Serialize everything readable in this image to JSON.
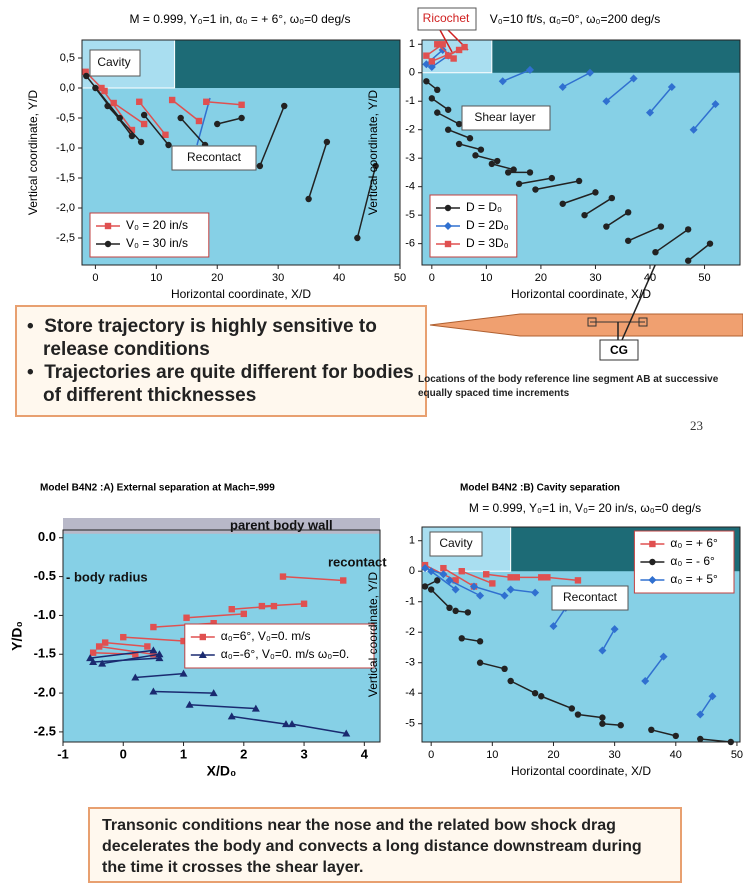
{
  "slide": {
    "bullets": [
      "Store trajectory is highly  sensitive to release conditions",
      "Trajectories are quite different for bodies of different thicknesses"
    ],
    "caption": "Locations of the body reference line segment AB at successive equally spaced time increments",
    "page_number": "23",
    "cg_label": "CG",
    "note": "Transonic conditions near the nose and the related bow shock drag decelerates the body and convects a long distance downstream during the time it crosses the shear layer."
  },
  "chart_data": [
    {
      "type": "segment",
      "title": "M = 0.999, Y₀=1 in, α₀ = + 6°, ω₀=0 deg/s",
      "x_label": "Horizontal coordinate, X/D",
      "y_label": "Vertical coordinate, Y/D",
      "xlim": [
        -2.2,
        50
      ],
      "ylim": [
        -2.95,
        0.8
      ],
      "xticks": [
        0,
        10,
        20,
        30,
        40,
        50
      ],
      "yticks": [
        {
          "value": 0.5,
          "label": "0,5"
        },
        {
          "value": 0,
          "label": "0,0"
        },
        {
          "value": -0.5,
          "label": "-0,5"
        },
        {
          "value": -1,
          "label": "-1,0"
        },
        {
          "value": -1.5,
          "label": "-1,5"
        },
        {
          "value": -2,
          "label": "-2,0"
        },
        {
          "value": -2.5,
          "label": "-2,5"
        }
      ],
      "cavity_x": 13,
      "legend": "lower left",
      "annotations": [
        "Cavity",
        "Recontact"
      ],
      "series": [
        {
          "name": "V₀ = 20 in/s",
          "color": "#e05050",
          "marker": "square",
          "segments": [
            [
              -1.6,
              0.27,
              1.5,
              -0.05
            ],
            [
              1,
              0,
              6,
              -0.7
            ],
            [
              3,
              -0.25,
              8,
              -0.6
            ],
            [
              7.2,
              -0.23,
              11.5,
              -0.78
            ],
            [
              12.6,
              -0.2,
              17,
              -0.55
            ],
            [
              18.2,
              -0.23,
              24,
              -0.28
            ]
          ]
        },
        {
          "name": "V₀ = 30 in/s",
          "color": "#222222",
          "marker": "circle",
          "segments": [
            [
              -1.5,
              0.2,
              4,
              -0.5
            ],
            [
              0,
              0,
              6,
              -0.8
            ],
            [
              2,
              -0.3,
              7.5,
              -0.9
            ],
            [
              8,
              -0.45,
              12,
              -0.95
            ],
            [
              14,
              -0.5,
              18,
              -0.95
            ],
            [
              20,
              -0.6,
              24,
              -0.5
            ],
            [
              27,
              -1.3,
              31,
              -0.3
            ],
            [
              35,
              -1.85,
              38,
              -0.9
            ],
            [
              43,
              -2.5,
              46,
              -1.3
            ]
          ]
        }
      ]
    },
    {
      "type": "segment",
      "title": "V₀=10 ft/s, α₀=0°, ω₀=200 deg/s",
      "x_label": "Horizontal coordinate, X/D",
      "y_label": "Vertical coordinate, Y/D",
      "xlim": [
        -1.8,
        56.5
      ],
      "ylim": [
        -6.75,
        1.15
      ],
      "xticks": [
        0,
        10,
        20,
        30,
        40,
        50
      ],
      "yticks": [
        1,
        0,
        -1,
        -2,
        -3,
        -4,
        -5,
        -6
      ],
      "cavity_x": 11,
      "legend": "lower left",
      "annotations": [
        "Ricochet",
        "Shear layer"
      ],
      "series": [
        {
          "name": "D = D₀",
          "color": "#222222",
          "marker": "circle",
          "segments": [
            [
              -1,
              -0.3,
              1,
              -0.6
            ],
            [
              0,
              -0.9,
              3,
              -1.3
            ],
            [
              1,
              -1.4,
              5,
              -1.8
            ],
            [
              3,
              -2.0,
              7,
              -2.3
            ],
            [
              5,
              -2.5,
              9,
              -2.7
            ],
            [
              8,
              -2.9,
              12,
              -3.1
            ],
            [
              11,
              -3.2,
              15,
              -3.4
            ],
            [
              14,
              -3.5,
              18,
              -3.5
            ],
            [
              16,
              -3.9,
              22,
              -3.7
            ],
            [
              19,
              -4.1,
              27,
              -3.8
            ],
            [
              24,
              -4.6,
              30,
              -4.2
            ],
            [
              28,
              -5.0,
              33,
              -4.4
            ],
            [
              32,
              -5.4,
              36,
              -4.9
            ],
            [
              36,
              -5.9,
              42,
              -5.4
            ],
            [
              41,
              -6.3,
              47,
              -5.5
            ],
            [
              47,
              -6.6,
              51,
              -6.0
            ]
          ]
        },
        {
          "name": "D = 2D₀",
          "color": "#3070d0",
          "marker": "diamond",
          "segments": [
            [
              -1,
              0.3,
              2,
              0.8
            ],
            [
              0,
              0.2,
              3,
              0.6
            ],
            [
              13,
              -0.3,
              18,
              0.1
            ],
            [
              24,
              -0.5,
              29,
              0
            ],
            [
              32,
              -1.0,
              37,
              -0.2
            ],
            [
              40,
              -1.4,
              44,
              -0.5
            ],
            [
              48,
              -2.0,
              52,
              -1.1
            ]
          ]
        },
        {
          "name": "D = 3D₀",
          "color": "#e05050",
          "marker": "square",
          "segments": [
            [
              -1,
              0.6,
              2,
              1.0
            ],
            [
              0,
              0.4,
              5,
              0.8
            ],
            [
              1,
              1.0,
              4,
              0.5
            ],
            [
              3,
              0.6,
              6,
              0.9
            ]
          ]
        }
      ]
    },
    {
      "type": "segment",
      "title": "Model B4N2 :A)  External separation at Mach=.999",
      "x_label": "X/D₀",
      "y_label": "Y/D₀",
      "xlim": [
        -1,
        4.26
      ],
      "ylim": [
        -2.63,
        0.1
      ],
      "xticks": [
        -1,
        0,
        1,
        2,
        3,
        4
      ],
      "yticks": [
        {
          "value": 0,
          "label": "0.0"
        },
        -0.5,
        {
          "value": -1,
          "label": "-1.0"
        },
        -1.5,
        {
          "value": -2,
          "label": "-2.0"
        },
        -2.5
      ],
      "legend": "center right",
      "annotations": [
        "parent body wall",
        "recontact",
        "- body radius"
      ],
      "series": [
        {
          "name": "α₀=6°, V₀=0. m/s",
          "color": "#e05050",
          "marker": "square",
          "segments": [
            [
              -0.5,
              -1.48,
              0.2,
              -1.5
            ],
            [
              -0.4,
              -1.4,
              0.5,
              -1.5
            ],
            [
              -0.3,
              -1.35,
              0.4,
              -1.4
            ],
            [
              0,
              -1.28,
              1,
              -1.33
            ],
            [
              0.5,
              -1.15,
              1.5,
              -1.1
            ],
            [
              1.05,
              -1.03,
              2,
              -0.98
            ],
            [
              1.8,
              -0.92,
              2.5,
              -0.88
            ],
            [
              2.3,
              -0.88,
              3,
              -0.85
            ],
            [
              2.65,
              -0.5,
              3.65,
              -0.55
            ]
          ]
        },
        {
          "name": "α₀=-6°, V₀=0. m/s ω₀=0.",
          "color": "#1a2a70",
          "marker": "triangle",
          "segments": [
            [
              -0.55,
              -1.55,
              0.5,
              -1.45
            ],
            [
              -0.35,
              -1.62,
              0.6,
              -1.5
            ],
            [
              -0.5,
              -1.6,
              0.6,
              -1.55
            ],
            [
              0.2,
              -1.8,
              1,
              -1.75
            ],
            [
              0.5,
              -1.98,
              1.5,
              -2.0
            ],
            [
              1.1,
              -2.15,
              2.2,
              -2.2
            ],
            [
              1.8,
              -2.3,
              2.7,
              -2.4
            ],
            [
              2.8,
              -2.4,
              3.7,
              -2.52
            ]
          ]
        }
      ]
    },
    {
      "type": "segment",
      "title": "Model B4N2 :B)  Cavity separation",
      "subtitle": "M = 0.999, Y₀=1 in, V₀= 20 in/s, ω₀=0 deg/s",
      "x_label": "Horizontal coordinate, X/D",
      "y_label": "Vertical coordinate, Y/D",
      "xlim": [
        -1.5,
        50.5
      ],
      "ylim": [
        -5.6,
        1.45
      ],
      "xticks": [
        0,
        10,
        20,
        30,
        40,
        50
      ],
      "yticks": [
        1,
        0,
        -1,
        -2,
        -3,
        -4,
        -5
      ],
      "cavity_x": 13,
      "legend": "upper right",
      "annotations": [
        "Cavity",
        "Recontact"
      ],
      "series": [
        {
          "name": "α₀ = + 6°",
          "color": "#e05050",
          "marker": "square",
          "segments": [
            [
              -1,
              0.2,
              4,
              -0.3
            ],
            [
              2,
              0.1,
              7,
              -0.5
            ],
            [
              5,
              0,
              10,
              -0.4
            ],
            [
              9,
              -0.1,
              13,
              -0.2
            ],
            [
              14,
              -0.2,
              18,
              -0.2
            ],
            [
              19,
              -0.2,
              24,
              -0.3
            ]
          ]
        },
        {
          "name": "α₀ = - 6°",
          "color": "#222222",
          "marker": "circle",
          "segments": [
            [
              -1,
              -0.5,
              1,
              -0.3
            ],
            [
              0,
              -0.6,
              3,
              -1.2
            ],
            [
              4,
              -1.3,
              6,
              -1.35
            ],
            [
              5,
              -2.2,
              8,
              -2.3
            ],
            [
              8,
              -3.0,
              12,
              -3.2
            ],
            [
              13,
              -3.6,
              17,
              -4.0
            ],
            [
              18,
              -4.1,
              23,
              -4.5
            ],
            [
              24,
              -4.7,
              28,
              -4.8
            ],
            [
              28,
              -5.0,
              31,
              -5.05
            ],
            [
              36,
              -5.2,
              40,
              -5.4
            ],
            [
              44,
              -5.5,
              49,
              -5.6
            ]
          ]
        },
        {
          "name": "α₀ = + 5°",
          "color": "#3070d0",
          "marker": "diamond",
          "segments": [
            [
              -1,
              0.1,
              2,
              -0.1
            ],
            [
              0,
              0,
              4,
              -0.6
            ],
            [
              3,
              -0.3,
              8,
              -0.8
            ],
            [
              7,
              -0.5,
              12,
              -0.8
            ],
            [
              13,
              -0.6,
              17,
              -0.7
            ],
            [
              20,
              -1.8,
              22,
              -1.2
            ],
            [
              28,
              -2.6,
              30,
              -1.9
            ],
            [
              35,
              -3.6,
              38,
              -2.8
            ],
            [
              44,
              -4.7,
              46,
              -4.1
            ]
          ]
        }
      ]
    }
  ]
}
